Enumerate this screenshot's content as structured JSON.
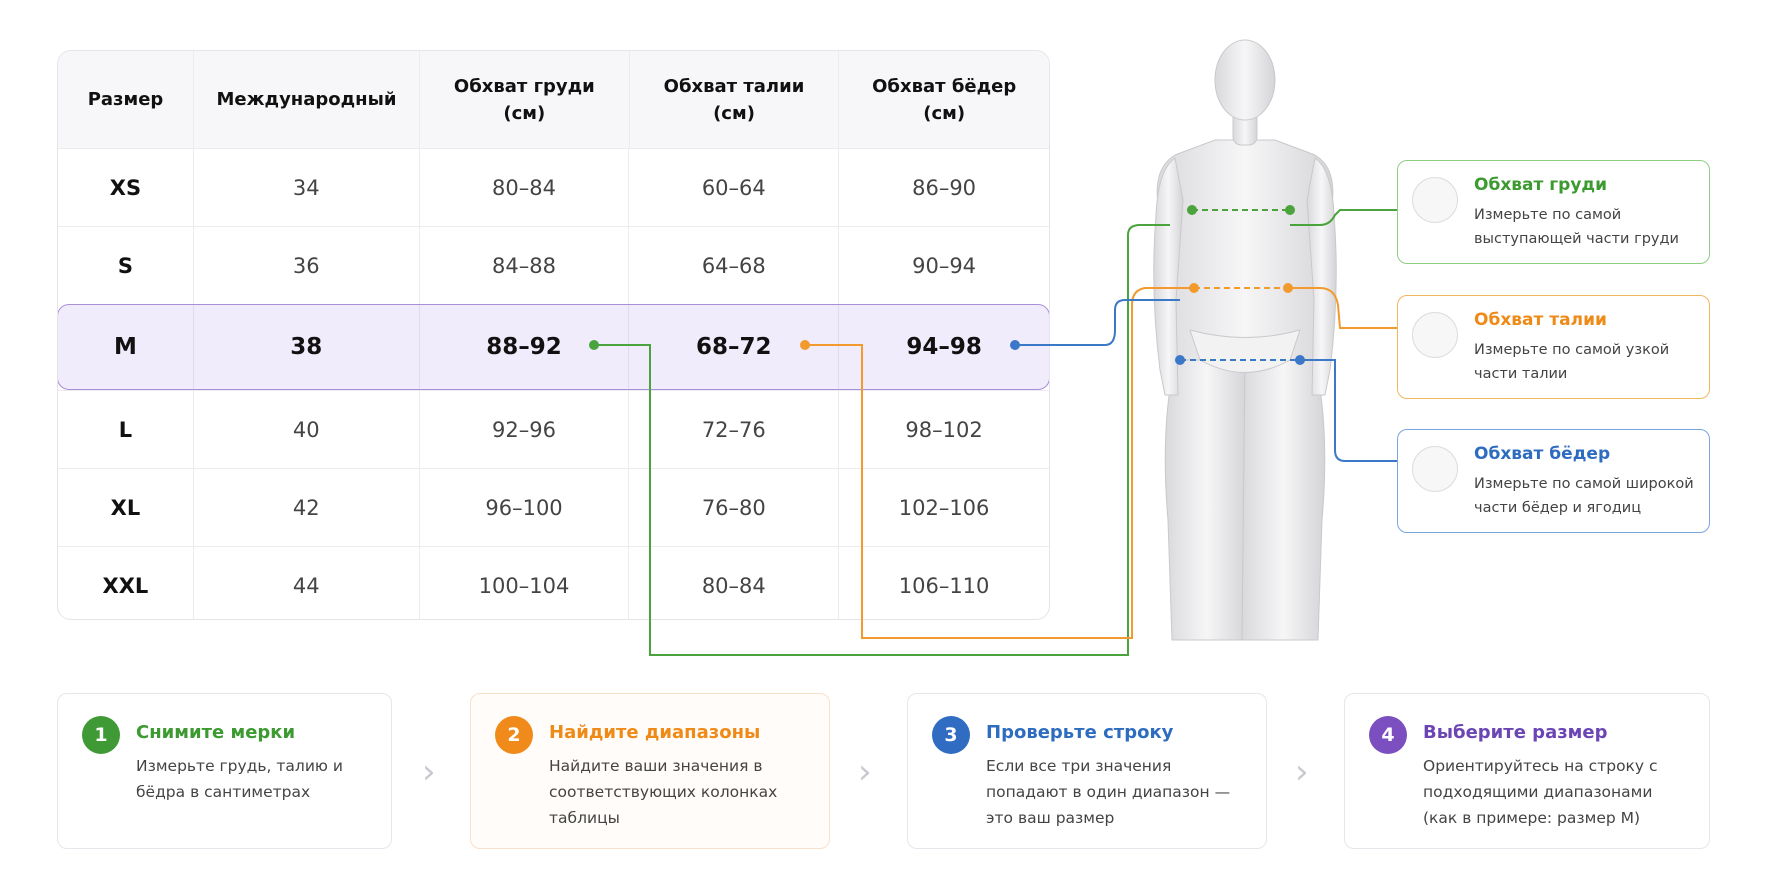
{
  "table": {
    "headers": [
      "Размер",
      "Международный",
      "Обхват груди (см)",
      "Обхват талии (см)",
      "Обхват бёдер (см)"
    ],
    "rows": [
      [
        "XS",
        "34",
        "80–84",
        "60–64",
        "86–90"
      ],
      [
        "S",
        "36",
        "84–88",
        "64–68",
        "90–94"
      ],
      [
        "M",
        "38",
        "88–92",
        "68–72",
        "94–98"
      ],
      [
        "L",
        "40",
        "92–96",
        "72–76",
        "98–102"
      ],
      [
        "XL",
        "42",
        "96–100",
        "76–80",
        "102–106"
      ],
      [
        "XXL",
        "44",
        "100–104",
        "80–84",
        "106–110"
      ]
    ]
  },
  "measures": [
    {
      "title": "Обхват груди",
      "text": "Измерьте по самой выступающей части груди"
    },
    {
      "title": "Обхват талии",
      "text": "Измерьте по самой узкой части талии"
    },
    {
      "title": "Обхват бёдер",
      "text": "Измерьте по самой широкой части бёдер и ягодиц"
    }
  ],
  "steps": [
    {
      "number": "1",
      "title": "Снимите мерки",
      "text": "Измерьте грудь, талию и бёдра в сантиметрах"
    },
    {
      "number": "2",
      "title": "Найдите диапазоны",
      "text": "Найдите ваши значения в соответствующих колонках таблицы"
    },
    {
      "number": "3",
      "title": "Проверьте строку",
      "text": "Если все три значения попадают в один диапазон — это ваш размер"
    },
    {
      "number": "4",
      "title": "Выберите размер",
      "text": "Ориентируйтесь на строку с подходящими диапазонами (как в примере: размер M)"
    }
  ]
}
